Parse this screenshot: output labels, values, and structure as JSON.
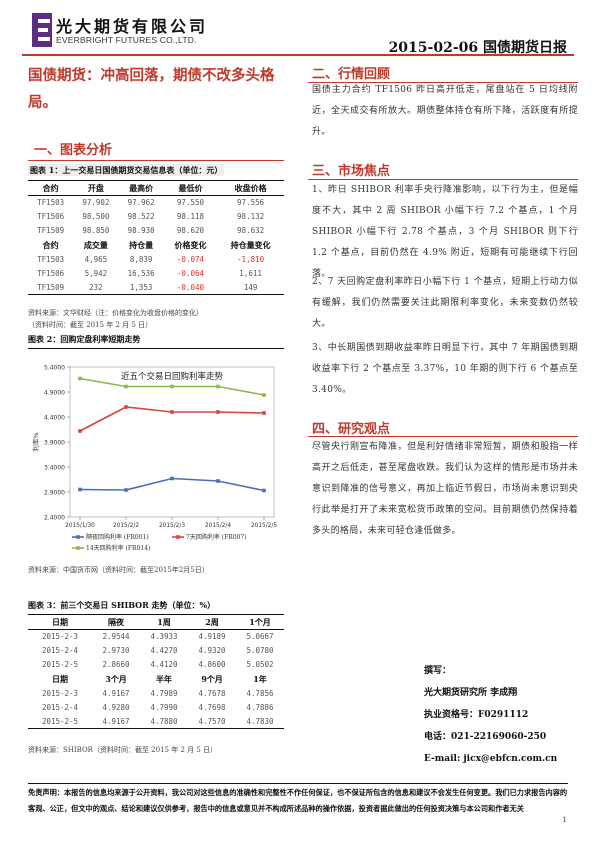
{
  "header": {
    "company_cn": "光大期货有限公司",
    "company_en": "EVERBRIGHT FUTURES CO.,LTD.",
    "report_title": "2015-02-06 国债期货日报",
    "accent_color": "#c0392b",
    "logo_icon": "everbright-logo-icon"
  },
  "headline": "国债期货：冲高回落，期债不改多头格局。",
  "section1": {
    "title": "一、图表分析",
    "table1": {
      "caption": "图表 1：上一交易日国债期货交易信息表（单位：元）",
      "header_a": [
        "合约",
        "开盘",
        "最高价",
        "最低价",
        "收盘价格"
      ],
      "rows_a": [
        [
          "TF1503",
          "97.902",
          "97.962",
          "97.550",
          "97.556"
        ],
        [
          "TF1506",
          "98.500",
          "98.522",
          "98.118",
          "98.132"
        ],
        [
          "TF1509",
          "98.850",
          "98.930",
          "98.620",
          "98.632"
        ]
      ],
      "header_b": [
        "合约",
        "成交量",
        "持仓量",
        "价格变化",
        "持仓量变化"
      ],
      "rows_b": [
        [
          "TF1503",
          "4,965",
          "8,839",
          "-0.074",
          "-1,810"
        ],
        [
          "TF1506",
          "5,942",
          "16,536",
          "-0.064",
          "1,611"
        ],
        [
          "TF1509",
          "232",
          "1,353",
          "-0.040",
          "149"
        ]
      ],
      "source_1": "资料来源：文华财经（注：价格变化为收盘价格的变化）",
      "source_2": "（资料时间：截至 2015 年 2 月 5 日）"
    },
    "chart": {
      "caption": "图表 2：回购定盘利率短期走势",
      "source": "资料来源：中国货币网（资料时间：截至2015年2月5日）"
    },
    "table3": {
      "caption": "图表 3：前三个交易日 SHIBOR 走势（单位：%）",
      "header_a": [
        "日期",
        "隔夜",
        "1周",
        "2周",
        "1个月"
      ],
      "rows_a": [
        [
          "2015-2-3",
          "2.9544",
          "4.3933",
          "4.9189",
          "5.0667"
        ],
        [
          "2015-2-4",
          "2.9730",
          "4.4270",
          "4.9320",
          "5.0780"
        ],
        [
          "2015-2-5",
          "2.8660",
          "4.4120",
          "4.8600",
          "5.0502"
        ]
      ],
      "header_b": [
        "日期",
        "3个月",
        "半年",
        "9个月",
        "1年"
      ],
      "rows_b": [
        [
          "2015-2-3",
          "4.9167",
          "4.7989",
          "4.7678",
          "4.7856"
        ],
        [
          "2015-2-4",
          "4.9280",
          "4.7990",
          "4.7698",
          "4.7886"
        ],
        [
          "2015-2-5",
          "4.9167",
          "4.7880",
          "4.7570",
          "4.7830"
        ]
      ],
      "source": "资料来源：SHIBOR（资料时间：截至 2015 年 2 月 5 日）"
    }
  },
  "chart_data": {
    "type": "line",
    "title": "近五个交易日回购利率走势",
    "ylabel": "利率%",
    "x": [
      "2015/1/30",
      "2015/2/2",
      "2015/2/3",
      "2015/2/4",
      "2015/2/5"
    ],
    "ylim": [
      2.4,
      5.4
    ],
    "yticks": [
      "2.4000",
      "2.9000",
      "3.4000",
      "3.9000",
      "4.4000",
      "4.9000",
      "5.4000"
    ],
    "legend_position": "bottom",
    "series": [
      {
        "name": "隔夜回购利率 (FR001)",
        "color": "#4a6fb5",
        "values": [
          2.95,
          2.94,
          3.17,
          3.12,
          2.93
        ]
      },
      {
        "name": "7天回购利率 (FR007)",
        "color": "#d6453a",
        "values": [
          4.12,
          4.6,
          4.5,
          4.5,
          4.48
        ]
      },
      {
        "name": "14天回购利率 (FR014)",
        "color": "#8fb74a",
        "values": [
          5.17,
          5.01,
          5.01,
          5.01,
          4.84
        ]
      }
    ]
  },
  "section2": {
    "title": "二、行情回顾",
    "body": "国债主力合约 TF1506 昨日高开低走，尾盘站在 5 日均线附近，全天成交有所放大。期债整体持仓有所下降，活跃度有所提升。"
  },
  "section3": {
    "title": "三、市场焦点",
    "p1": "1、昨日 SHIBOR 利率手央行降准影响，以下行为主，但是幅度不大，其中 2 周 SHIBOR 小幅下行 7.2 个基点，1 个月 SHIBOR 小幅下行 2.78 个基点，3 个月 SHIBOR 则下行 1.2 个基点，目前仍然在 4.9% 附近，短期有可能继续下行回落。",
    "p2": "2、7 天回购定盘利率昨日小幅下行 1 个基点，短期上行动力似有缓解，我们仍然需要关注此期限利率变化，未来变数仍然较大。",
    "p3": "3、中长期国债到期收益率昨日明显下行，其中 7 年期国债到期收益率下行 2 个基点至 3.37%，10 年期的则下行 6 个基点至 3.40%。"
  },
  "section4": {
    "title": "四、研究观点",
    "body": "尽管央行刚宣布降准，但是利好情绪非常短暂，期债和股指一样高开之后低走，甚至尾盘收跌。我们认为这样的情形是市场并未意识到降准的信号意义，再加上临近节假日，市场尚未意识到央行此举是打开了未来宽松货币政策的空间。目前期债仍然保持着多头的格局，未来可轻仓逢低做多。"
  },
  "author": {
    "label": "撰写：",
    "name": "光大期货研究所 李成翔",
    "license": "执业资格号：F0291112",
    "phone": "电话：021-22169060-250",
    "email": "E-mail: jicx@ebfcn.com.cn"
  },
  "footer": {
    "disclaimer": "免责声明：本报告的信息均来源于公开资料，我公司对这些信息的准确性和完整性不作任何保证，也不保证所包含的信息和建议不会发生任何变更。我们已力求报告内容的客观、公正，但文中的观点、结论和建议仅供参考，报告中的信息或意见并不构成所述品种的操作依据，投资者据此做出的任何投资决策与本公司和作者无关",
    "page_number": "1"
  }
}
